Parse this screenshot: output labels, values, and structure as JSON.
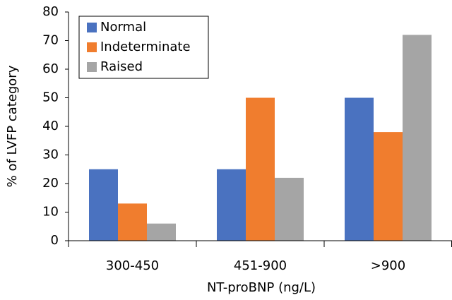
{
  "chart_data": {
    "type": "bar",
    "x_label": "NT-proBNP (ng/L)",
    "y_label": "% of LVFP category",
    "categories": [
      "300-450",
      "451-900",
      ">900"
    ],
    "series": [
      {
        "name": "Normal",
        "color": "#4a72c0",
        "values": [
          25,
          25,
          50
        ]
      },
      {
        "name": "Indeterminate",
        "color": "#f07d2e",
        "values": [
          13,
          50,
          38
        ]
      },
      {
        "name": "Raised",
        "color": "#a5a5a5",
        "values": [
          6,
          22,
          72
        ]
      }
    ],
    "ylim": [
      0,
      80
    ],
    "yticks": [
      0,
      10,
      20,
      30,
      40,
      50,
      60,
      70,
      80
    ],
    "grid": false,
    "legend": "top-left"
  }
}
